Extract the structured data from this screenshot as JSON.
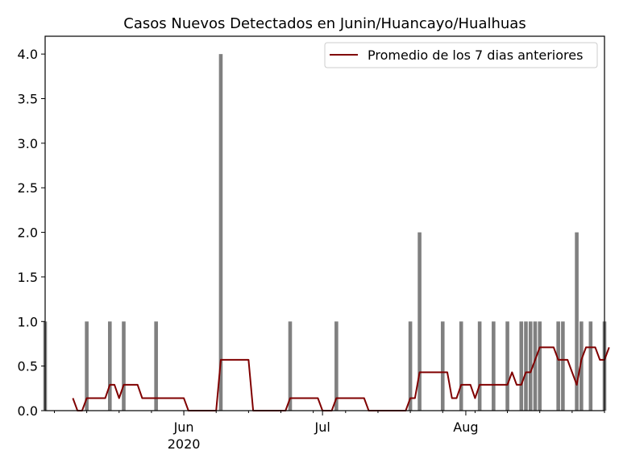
{
  "chart_data": {
    "type": "bar",
    "title": "Casos Nuevos Detectados en Junin/Huancayo/Hualhuas",
    "xlabel": "",
    "ylabel": "",
    "x_range": [
      "2020-05-02",
      "2020-08-31"
    ],
    "ylim": [
      0,
      4.2
    ],
    "y_ticks": [
      0.0,
      0.5,
      1.0,
      1.5,
      2.0,
      2.5,
      3.0,
      3.5,
      4.0
    ],
    "y_tick_labels": [
      "0.0",
      "0.5",
      "1.0",
      "1.5",
      "2.0",
      "2.5",
      "3.0",
      "3.5",
      "4.0"
    ],
    "x_major_ticks": [
      {
        "date": "2020-06-01",
        "label": "Jun",
        "sublabel": "2020"
      },
      {
        "date": "2020-07-01",
        "label": "Jul",
        "sublabel": ""
      },
      {
        "date": "2020-08-01",
        "label": "Aug",
        "sublabel": ""
      }
    ],
    "grid": false,
    "legend_position": "top-right",
    "bar_color": "#808080",
    "line_color": "#800000",
    "series": [
      {
        "name": "",
        "kind": "bar",
        "points": [
          [
            "2020-05-02",
            1
          ],
          [
            "2020-05-11",
            1
          ],
          [
            "2020-05-16",
            1
          ],
          [
            "2020-05-19",
            1
          ],
          [
            "2020-05-26",
            1
          ],
          [
            "2020-06-09",
            4
          ],
          [
            "2020-06-24",
            1
          ],
          [
            "2020-07-04",
            1
          ],
          [
            "2020-07-20",
            1
          ],
          [
            "2020-07-22",
            2
          ],
          [
            "2020-07-27",
            1
          ],
          [
            "2020-07-31",
            1
          ],
          [
            "2020-08-04",
            1
          ],
          [
            "2020-08-07",
            1
          ],
          [
            "2020-08-10",
            1
          ],
          [
            "2020-08-13",
            1
          ],
          [
            "2020-08-14",
            1
          ],
          [
            "2020-08-15",
            1
          ],
          [
            "2020-08-16",
            1
          ],
          [
            "2020-08-17",
            1
          ],
          [
            "2020-08-21",
            1
          ],
          [
            "2020-08-22",
            1
          ],
          [
            "2020-08-25",
            2
          ],
          [
            "2020-08-26",
            1
          ],
          [
            "2020-08-28",
            1
          ],
          [
            "2020-08-31",
            1
          ]
        ]
      },
      {
        "name": "Promedio de los 7 dias anteriores",
        "kind": "line",
        "points": [
          [
            "2020-05-08",
            0.14
          ],
          [
            "2020-05-09",
            0.0
          ],
          [
            "2020-05-10",
            0.0
          ],
          [
            "2020-05-11",
            0.14
          ],
          [
            "2020-05-12",
            0.14
          ],
          [
            "2020-05-13",
            0.14
          ],
          [
            "2020-05-14",
            0.14
          ],
          [
            "2020-05-15",
            0.14
          ],
          [
            "2020-05-16",
            0.29
          ],
          [
            "2020-05-17",
            0.29
          ],
          [
            "2020-05-18",
            0.14
          ],
          [
            "2020-05-19",
            0.29
          ],
          [
            "2020-05-20",
            0.29
          ],
          [
            "2020-05-21",
            0.29
          ],
          [
            "2020-05-22",
            0.29
          ],
          [
            "2020-05-23",
            0.14
          ],
          [
            "2020-05-24",
            0.14
          ],
          [
            "2020-05-25",
            0.14
          ],
          [
            "2020-05-26",
            0.14
          ],
          [
            "2020-05-27",
            0.14
          ],
          [
            "2020-05-28",
            0.14
          ],
          [
            "2020-05-29",
            0.14
          ],
          [
            "2020-05-30",
            0.14
          ],
          [
            "2020-05-31",
            0.14
          ],
          [
            "2020-06-01",
            0.14
          ],
          [
            "2020-06-02",
            0.0
          ],
          [
            "2020-06-03",
            0.0
          ],
          [
            "2020-06-04",
            0.0
          ],
          [
            "2020-06-05",
            0.0
          ],
          [
            "2020-06-06",
            0.0
          ],
          [
            "2020-06-07",
            0.0
          ],
          [
            "2020-06-08",
            0.0
          ],
          [
            "2020-06-09",
            0.57
          ],
          [
            "2020-06-10",
            0.57
          ],
          [
            "2020-06-11",
            0.57
          ],
          [
            "2020-06-12",
            0.57
          ],
          [
            "2020-06-13",
            0.57
          ],
          [
            "2020-06-14",
            0.57
          ],
          [
            "2020-06-15",
            0.57
          ],
          [
            "2020-06-16",
            0.0
          ],
          [
            "2020-06-17",
            0.0
          ],
          [
            "2020-06-18",
            0.0
          ],
          [
            "2020-06-19",
            0.0
          ],
          [
            "2020-06-20",
            0.0
          ],
          [
            "2020-06-21",
            0.0
          ],
          [
            "2020-06-22",
            0.0
          ],
          [
            "2020-06-23",
            0.0
          ],
          [
            "2020-06-24",
            0.14
          ],
          [
            "2020-06-25",
            0.14
          ],
          [
            "2020-06-26",
            0.14
          ],
          [
            "2020-06-27",
            0.14
          ],
          [
            "2020-06-28",
            0.14
          ],
          [
            "2020-06-29",
            0.14
          ],
          [
            "2020-06-30",
            0.14
          ],
          [
            "2020-07-01",
            0.0
          ],
          [
            "2020-07-02",
            0.0
          ],
          [
            "2020-07-03",
            0.0
          ],
          [
            "2020-07-04",
            0.14
          ],
          [
            "2020-07-05",
            0.14
          ],
          [
            "2020-07-06",
            0.14
          ],
          [
            "2020-07-07",
            0.14
          ],
          [
            "2020-07-08",
            0.14
          ],
          [
            "2020-07-09",
            0.14
          ],
          [
            "2020-07-10",
            0.14
          ],
          [
            "2020-07-11",
            0.0
          ],
          [
            "2020-07-12",
            0.0
          ],
          [
            "2020-07-13",
            0.0
          ],
          [
            "2020-07-14",
            0.0
          ],
          [
            "2020-07-15",
            0.0
          ],
          [
            "2020-07-16",
            0.0
          ],
          [
            "2020-07-17",
            0.0
          ],
          [
            "2020-07-18",
            0.0
          ],
          [
            "2020-07-19",
            0.0
          ],
          [
            "2020-07-20",
            0.14
          ],
          [
            "2020-07-21",
            0.14
          ],
          [
            "2020-07-22",
            0.43
          ],
          [
            "2020-07-23",
            0.43
          ],
          [
            "2020-07-24",
            0.43
          ],
          [
            "2020-07-25",
            0.43
          ],
          [
            "2020-07-26",
            0.43
          ],
          [
            "2020-07-27",
            0.43
          ],
          [
            "2020-07-28",
            0.43
          ],
          [
            "2020-07-29",
            0.14
          ],
          [
            "2020-07-30",
            0.14
          ],
          [
            "2020-07-31",
            0.29
          ],
          [
            "2020-08-01",
            0.29
          ],
          [
            "2020-08-02",
            0.29
          ],
          [
            "2020-08-03",
            0.14
          ],
          [
            "2020-08-04",
            0.29
          ],
          [
            "2020-08-05",
            0.29
          ],
          [
            "2020-08-06",
            0.29
          ],
          [
            "2020-08-07",
            0.29
          ],
          [
            "2020-08-08",
            0.29
          ],
          [
            "2020-08-09",
            0.29
          ],
          [
            "2020-08-10",
            0.29
          ],
          [
            "2020-08-11",
            0.43
          ],
          [
            "2020-08-12",
            0.29
          ],
          [
            "2020-08-13",
            0.29
          ],
          [
            "2020-08-14",
            0.43
          ],
          [
            "2020-08-15",
            0.43
          ],
          [
            "2020-08-16",
            0.57
          ],
          [
            "2020-08-17",
            0.71
          ],
          [
            "2020-08-18",
            0.71
          ],
          [
            "2020-08-19",
            0.71
          ],
          [
            "2020-08-20",
            0.71
          ],
          [
            "2020-08-21",
            0.57
          ],
          [
            "2020-08-22",
            0.57
          ],
          [
            "2020-08-23",
            0.57
          ],
          [
            "2020-08-24",
            0.43
          ],
          [
            "2020-08-25",
            0.29
          ],
          [
            "2020-08-26",
            0.57
          ],
          [
            "2020-08-27",
            0.71
          ],
          [
            "2020-08-28",
            0.71
          ],
          [
            "2020-08-29",
            0.71
          ],
          [
            "2020-08-30",
            0.57
          ],
          [
            "2020-08-31",
            0.57
          ],
          [
            "2020-09-01",
            0.71
          ]
        ]
      }
    ]
  }
}
